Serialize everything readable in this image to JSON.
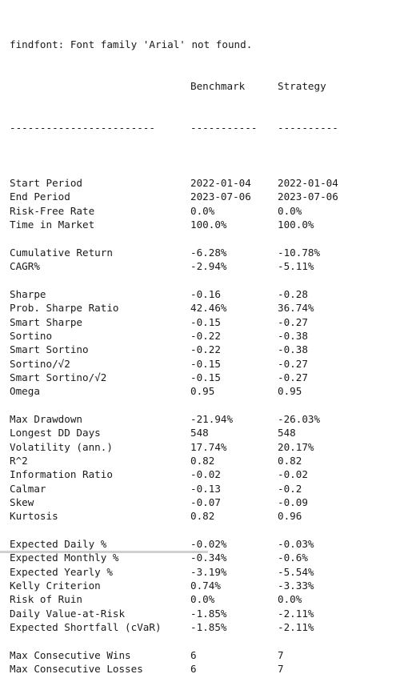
{
  "warning": "findfont: Font family 'Arial' not found.",
  "header": {
    "metric": "",
    "benchmark": "Benchmark",
    "strategy": "Strategy"
  },
  "separator": {
    "metric": "------------------------",
    "benchmark": "-----------",
    "strategy": "----------"
  },
  "groups": [
    [
      {
        "metric": "Start Period",
        "benchmark": "2022-01-04",
        "strategy": "2022-01-04"
      },
      {
        "metric": "End Period",
        "benchmark": "2023-07-06",
        "strategy": "2023-07-06"
      },
      {
        "metric": "Risk-Free Rate",
        "benchmark": "0.0%",
        "strategy": "0.0%"
      },
      {
        "metric": "Time in Market",
        "benchmark": "100.0%",
        "strategy": "100.0%"
      }
    ],
    [
      {
        "metric": "Cumulative Return",
        "benchmark": "-6.28%",
        "strategy": "-10.78%"
      },
      {
        "metric": "CAGR%",
        "benchmark": "-2.94%",
        "strategy": "-5.11%"
      }
    ],
    [
      {
        "metric": "Sharpe",
        "benchmark": "-0.16",
        "strategy": "-0.28"
      },
      {
        "metric": "Prob. Sharpe Ratio",
        "benchmark": "42.46%",
        "strategy": "36.74%"
      },
      {
        "metric": "Smart Sharpe",
        "benchmark": "-0.15",
        "strategy": "-0.27"
      },
      {
        "metric": "Sortino",
        "benchmark": "-0.22",
        "strategy": "-0.38"
      },
      {
        "metric": "Smart Sortino",
        "benchmark": "-0.22",
        "strategy": "-0.38"
      },
      {
        "metric": "Sortino/√2",
        "benchmark": "-0.15",
        "strategy": "-0.27"
      },
      {
        "metric": "Smart Sortino/√2",
        "benchmark": "-0.15",
        "strategy": "-0.27"
      },
      {
        "metric": "Omega",
        "benchmark": "0.95",
        "strategy": "0.95"
      }
    ],
    [
      {
        "metric": "Max Drawdown",
        "benchmark": "-21.94%",
        "strategy": "-26.03%"
      },
      {
        "metric": "Longest DD Days",
        "benchmark": "548",
        "strategy": "548"
      },
      {
        "metric": "Volatility (ann.)",
        "benchmark": "17.74%",
        "strategy": "20.17%"
      },
      {
        "metric": "R^2",
        "benchmark": "0.82",
        "strategy": "0.82"
      },
      {
        "metric": "Information Ratio",
        "benchmark": "-0.02",
        "strategy": "-0.02"
      },
      {
        "metric": "Calmar",
        "benchmark": "-0.13",
        "strategy": "-0.2"
      },
      {
        "metric": "Skew",
        "benchmark": "-0.07",
        "strategy": "-0.09"
      },
      {
        "metric": "Kurtosis",
        "benchmark": "0.82",
        "strategy": "0.96"
      }
    ],
    [
      {
        "metric": "Expected Daily %",
        "benchmark": "-0.02%",
        "strategy": "-0.03%"
      },
      {
        "metric": "Expected Monthly %",
        "benchmark": "-0.34%",
        "strategy": "-0.6%"
      },
      {
        "metric": "Expected Yearly %",
        "benchmark": "-3.19%",
        "strategy": "-5.54%"
      },
      {
        "metric": "Kelly Criterion",
        "benchmark": "0.74%",
        "strategy": "-3.33%"
      },
      {
        "metric": "Risk of Ruin",
        "benchmark": "0.0%",
        "strategy": "0.0%"
      },
      {
        "metric": "Daily Value-at-Risk",
        "benchmark": "-1.85%",
        "strategy": "-2.11%"
      },
      {
        "metric": "Expected Shortfall (cVaR)",
        "benchmark": "-1.85%",
        "strategy": "-2.11%"
      }
    ],
    [
      {
        "metric": "Max Consecutive Wins",
        "benchmark": "6",
        "strategy": "7"
      },
      {
        "metric": "Max Consecutive Losses",
        "benchmark": "6",
        "strategy": "7"
      }
    ]
  ]
}
